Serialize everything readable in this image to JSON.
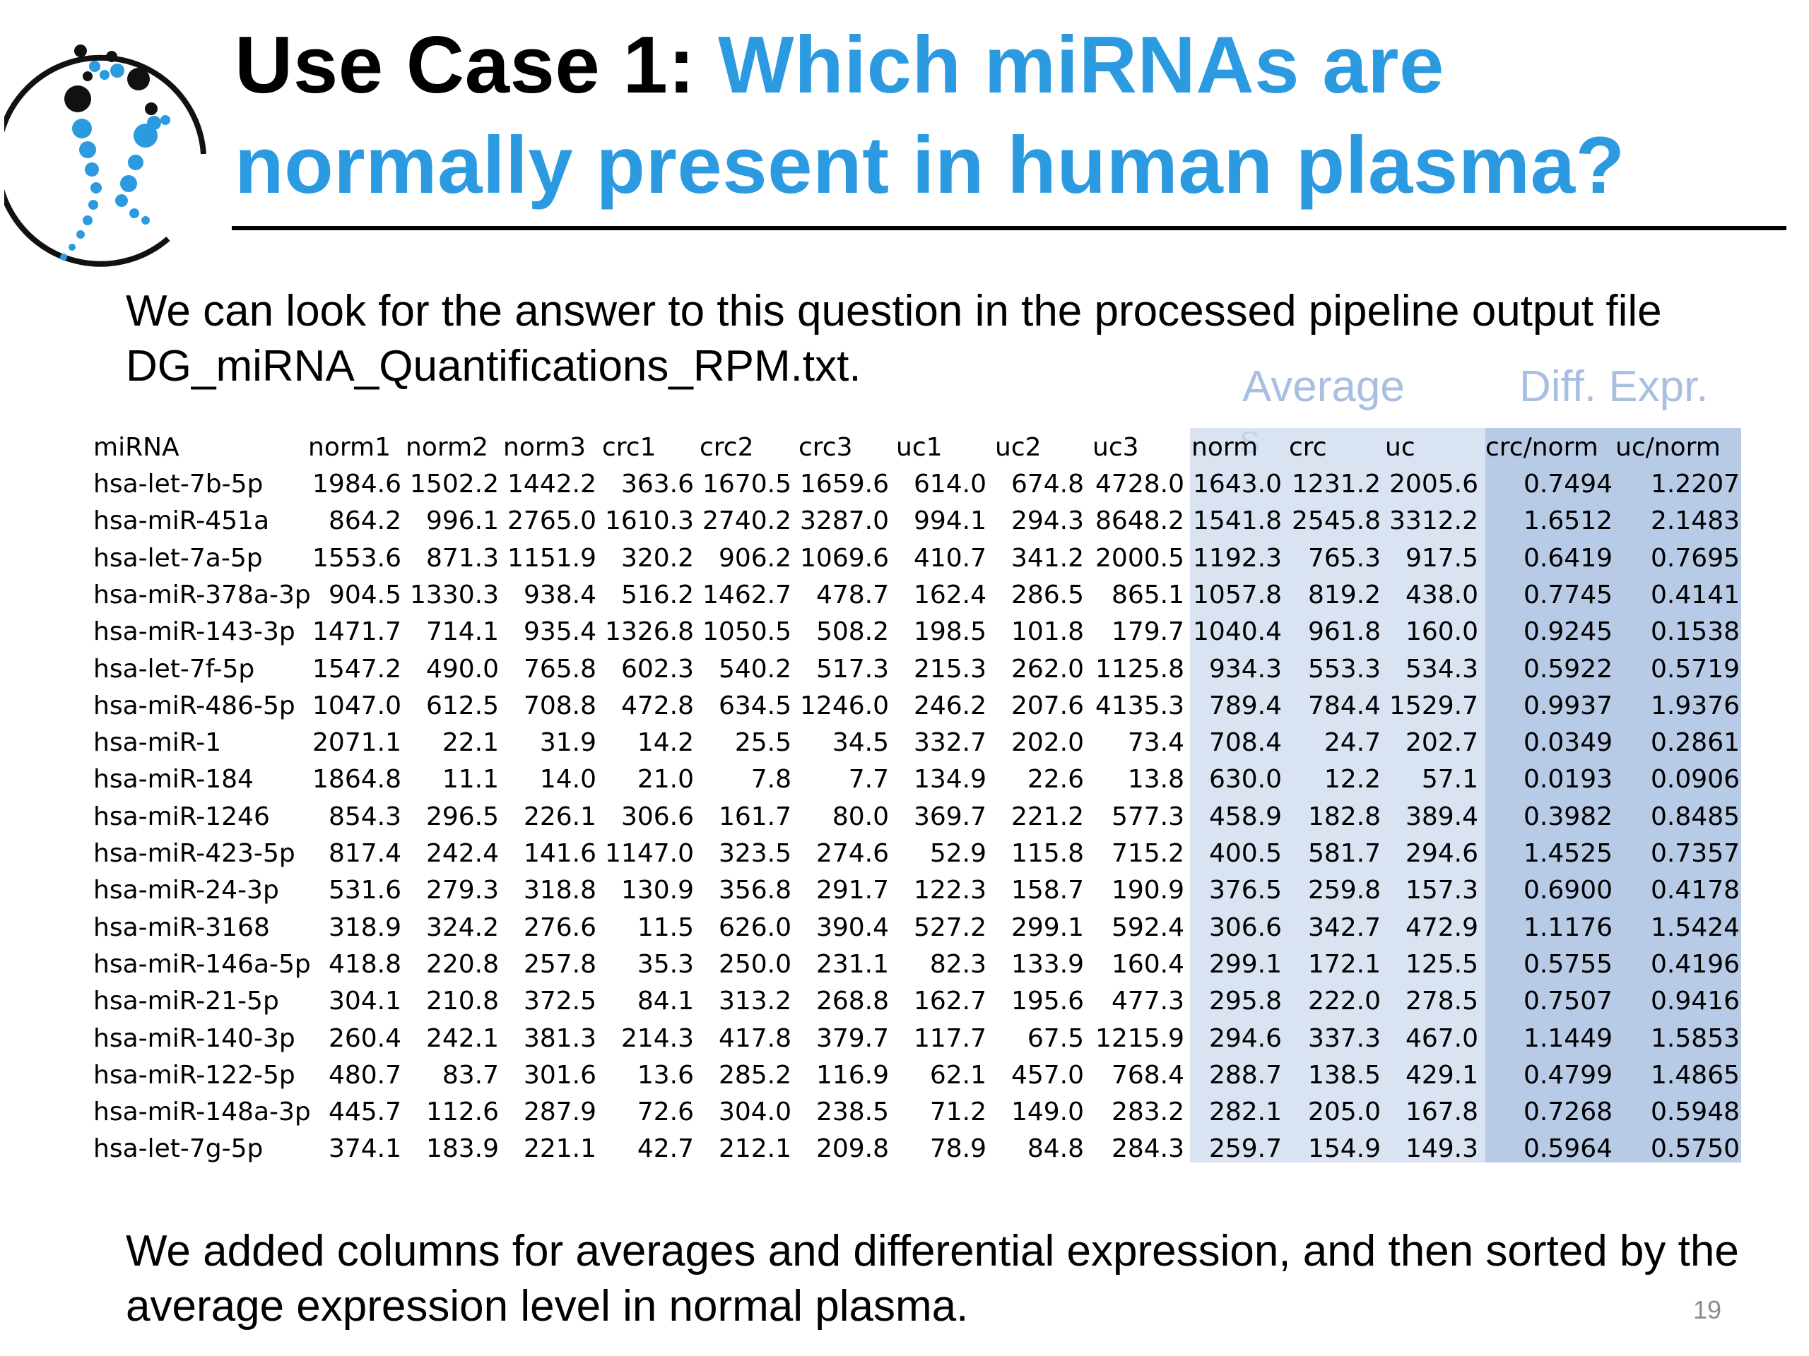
{
  "title": {
    "prefix": "Use Case 1: ",
    "line1_rest": "Which miRNAs are",
    "line2": "normally present in human plasma?"
  },
  "intro_text": "We can look for the answer to this question in the processed pipeline output file DG_miRNA_Quantifications_RPM.txt.",
  "group_labels": {
    "average": "Average",
    "average_overflow": "S",
    "diff": "Diff. Expr."
  },
  "table": {
    "columns": [
      "miRNA",
      "norm1",
      "norm2",
      "norm3",
      "crc1",
      "crc2",
      "crc3",
      "uc1",
      "uc2",
      "uc3",
      "norm",
      "crc",
      "uc",
      "crc/norm",
      "uc/norm"
    ],
    "rows": [
      [
        "hsa-let-7b-5p",
        "1984.6",
        "1502.2",
        "1442.2",
        "363.6",
        "1670.5",
        "1659.6",
        "614.0",
        "674.8",
        "4728.0",
        "1643.0",
        "1231.2",
        "2005.6",
        "0.7494",
        "1.2207"
      ],
      [
        "hsa-miR-451a",
        "864.2",
        "996.1",
        "2765.0",
        "1610.3",
        "2740.2",
        "3287.0",
        "994.1",
        "294.3",
        "8648.2",
        "1541.8",
        "2545.8",
        "3312.2",
        "1.6512",
        "2.1483"
      ],
      [
        "hsa-let-7a-5p",
        "1553.6",
        "871.3",
        "1151.9",
        "320.2",
        "906.2",
        "1069.6",
        "410.7",
        "341.2",
        "2000.5",
        "1192.3",
        "765.3",
        "917.5",
        "0.6419",
        "0.7695"
      ],
      [
        "hsa-miR-378a-3p",
        "904.5",
        "1330.3",
        "938.4",
        "516.2",
        "1462.7",
        "478.7",
        "162.4",
        "286.5",
        "865.1",
        "1057.8",
        "819.2",
        "438.0",
        "0.7745",
        "0.4141"
      ],
      [
        "hsa-miR-143-3p",
        "1471.7",
        "714.1",
        "935.4",
        "1326.8",
        "1050.5",
        "508.2",
        "198.5",
        "101.8",
        "179.7",
        "1040.4",
        "961.8",
        "160.0",
        "0.9245",
        "0.1538"
      ],
      [
        "hsa-let-7f-5p",
        "1547.2",
        "490.0",
        "765.8",
        "602.3",
        "540.2",
        "517.3",
        "215.3",
        "262.0",
        "1125.8",
        "934.3",
        "553.3",
        "534.3",
        "0.5922",
        "0.5719"
      ],
      [
        "hsa-miR-486-5p",
        "1047.0",
        "612.5",
        "708.8",
        "472.8",
        "634.5",
        "1246.0",
        "246.2",
        "207.6",
        "4135.3",
        "789.4",
        "784.4",
        "1529.7",
        "0.9937",
        "1.9376"
      ],
      [
        "hsa-miR-1",
        "2071.1",
        "22.1",
        "31.9",
        "14.2",
        "25.5",
        "34.5",
        "332.7",
        "202.0",
        "73.4",
        "708.4",
        "24.7",
        "202.7",
        "0.0349",
        "0.2861"
      ],
      [
        "hsa-miR-184",
        "1864.8",
        "11.1",
        "14.0",
        "21.0",
        "7.8",
        "7.7",
        "134.9",
        "22.6",
        "13.8",
        "630.0",
        "12.2",
        "57.1",
        "0.0193",
        "0.0906"
      ],
      [
        "hsa-miR-1246",
        "854.3",
        "296.5",
        "226.1",
        "306.6",
        "161.7",
        "80.0",
        "369.7",
        "221.2",
        "577.3",
        "458.9",
        "182.8",
        "389.4",
        "0.3982",
        "0.8485"
      ],
      [
        "hsa-miR-423-5p",
        "817.4",
        "242.4",
        "141.6",
        "1147.0",
        "323.5",
        "274.6",
        "52.9",
        "115.8",
        "715.2",
        "400.5",
        "581.7",
        "294.6",
        "1.4525",
        "0.7357"
      ],
      [
        "hsa-miR-24-3p",
        "531.6",
        "279.3",
        "318.8",
        "130.9",
        "356.8",
        "291.7",
        "122.3",
        "158.7",
        "190.9",
        "376.5",
        "259.8",
        "157.3",
        "0.6900",
        "0.4178"
      ],
      [
        "hsa-miR-3168",
        "318.9",
        "324.2",
        "276.6",
        "11.5",
        "626.0",
        "390.4",
        "527.2",
        "299.1",
        "592.4",
        "306.6",
        "342.7",
        "472.9",
        "1.1176",
        "1.5424"
      ],
      [
        "hsa-miR-146a-5p",
        "418.8",
        "220.8",
        "257.8",
        "35.3",
        "250.0",
        "231.1",
        "82.3",
        "133.9",
        "160.4",
        "299.1",
        "172.1",
        "125.5",
        "0.5755",
        "0.4196"
      ],
      [
        "hsa-miR-21-5p",
        "304.1",
        "210.8",
        "372.5",
        "84.1",
        "313.2",
        "268.8",
        "162.7",
        "195.6",
        "477.3",
        "295.8",
        "222.0",
        "278.5",
        "0.7507",
        "0.9416"
      ],
      [
        "hsa-miR-140-3p",
        "260.4",
        "242.1",
        "381.3",
        "214.3",
        "417.8",
        "379.7",
        "117.7",
        "67.5",
        "1215.9",
        "294.6",
        "337.3",
        "467.0",
        "1.1449",
        "1.5853"
      ],
      [
        "hsa-miR-122-5p",
        "480.7",
        "83.7",
        "301.6",
        "13.6",
        "285.2",
        "116.9",
        "62.1",
        "457.0",
        "768.4",
        "288.7",
        "138.5",
        "429.1",
        "0.4799",
        "1.4865"
      ],
      [
        "hsa-miR-148a-3p",
        "445.7",
        "112.6",
        "287.9",
        "72.6",
        "304.0",
        "238.5",
        "71.2",
        "149.0",
        "283.2",
        "282.1",
        "205.0",
        "167.8",
        "0.7268",
        "0.5948"
      ],
      [
        "hsa-let-7g-5p",
        "374.1",
        "183.9",
        "221.1",
        "42.7",
        "212.1",
        "209.8",
        "78.9",
        "84.8",
        "284.3",
        "259.7",
        "154.9",
        "149.3",
        "0.5964",
        "0.5750"
      ]
    ]
  },
  "outro_text": "We added columns for averages and differential expression, and then sorted by the average expression level in normal plasma.",
  "page_number": "19",
  "colors": {
    "title_blue": "#2b9ae0",
    "avg_shade": "#dae3f1",
    "diff_shade": "#b7cae6",
    "group_label": "#a9bfe2"
  }
}
